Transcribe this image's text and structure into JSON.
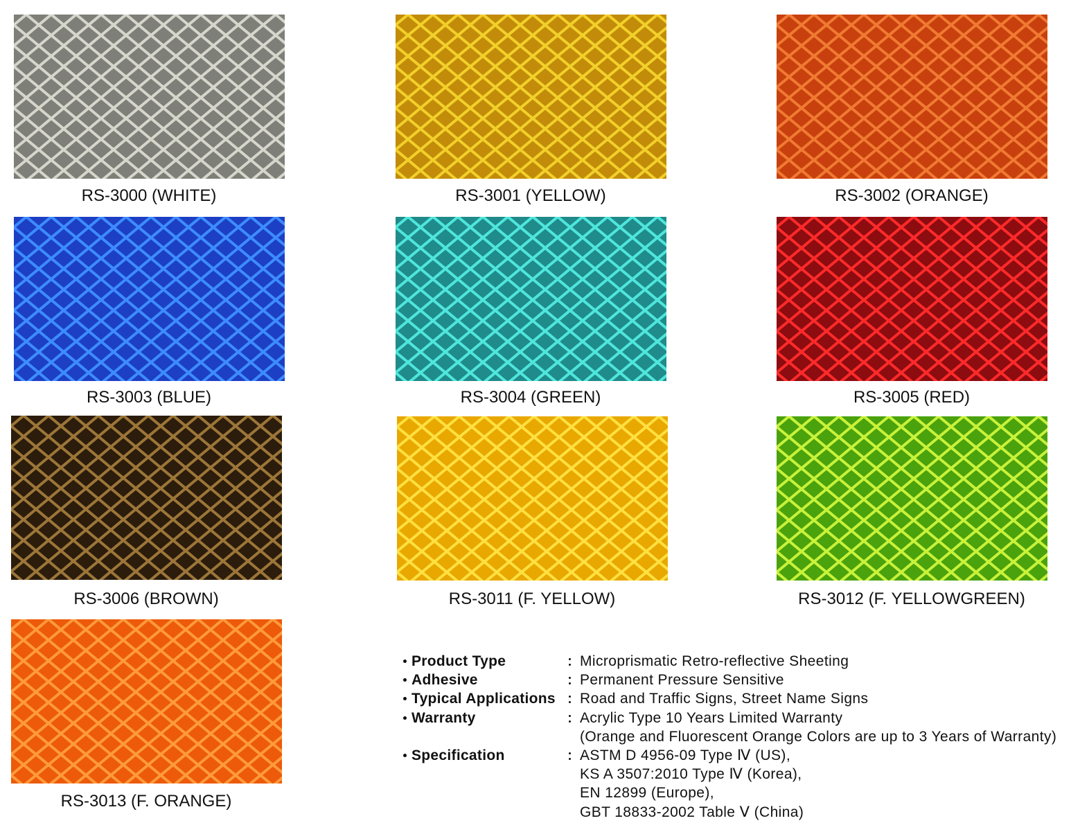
{
  "swatches": [
    "RS-3000 (WHITE)",
    "RS-3001 (YELLOW)",
    "RS-3002 (ORANGE)",
    "RS-3003 (BLUE)",
    "RS-3004 (GREEN)",
    "RS-3005 (RED)",
    "RS-3006 (BROWN)",
    "RS-3011 (F. YELLOW)",
    "RS-3012 (F. YELLOWGREEN)",
    "RS-3013 (F. ORANGE)"
  ],
  "specifications": [
    {
      "label": "Product Type",
      "value": [
        "Microprismatic Retro-reflective Sheeting"
      ]
    },
    {
      "label": "Adhesive",
      "value": [
        "Permanent Pressure Sensitive"
      ]
    },
    {
      "label": "Typical Applications",
      "value": [
        "Road and Traffic Signs, Street Name Signs"
      ]
    },
    {
      "label": "Warranty",
      "value": [
        "Acrylic Type 10 Years Limited Warranty",
        "(Orange and Fluorescent Orange Colors are up to 3 Years of Warranty)"
      ]
    },
    {
      "label": "Specification",
      "value": [
        "ASTM D 4956-09 Type Ⅳ (US),",
        "KS A 3507:2010 Type Ⅳ (Korea),",
        "EN 12899 (Europe),",
        "GBT 18833-2002 Table Ⅴ (China)"
      ]
    }
  ]
}
